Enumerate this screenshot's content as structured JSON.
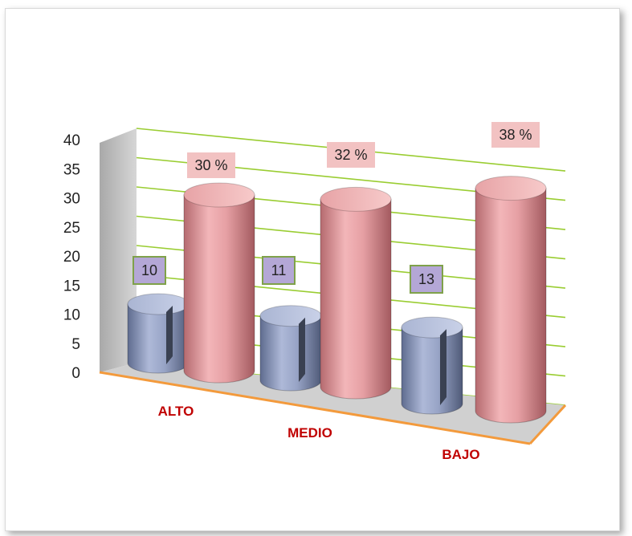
{
  "chart_data": {
    "type": "bar",
    "title": "",
    "xlabel": "",
    "ylabel": "",
    "categories": [
      "ALTO",
      "MEDIO",
      "BAJO"
    ],
    "series": [
      {
        "values": [
          10,
          11,
          13
        ],
        "data_labels": [
          "10",
          "11",
          "13"
        ],
        "color": "#8e9bc0"
      },
      {
        "values": [
          30,
          32,
          38
        ],
        "data_labels": [
          "30 %",
          "32 %",
          "38 %"
        ],
        "color": "#dc8f94"
      }
    ],
    "ylim": [
      0,
      40
    ],
    "yticks": [
      "0",
      "5",
      "10",
      "15",
      "20",
      "25",
      "30",
      "35",
      "40"
    ],
    "grid": true,
    "gridline_color": "#9acd32",
    "axis_text_color": "#222222",
    "category_label_color": "#c00000",
    "small_label_fill": "#b4a7d6",
    "small_label_border": "#7fa14a",
    "large_label_fill": "#f2c2c2",
    "floor_color": "#d0d0d0",
    "floor_edge_color": "#f39a3c",
    "wall_color": "#bdbdbd"
  }
}
